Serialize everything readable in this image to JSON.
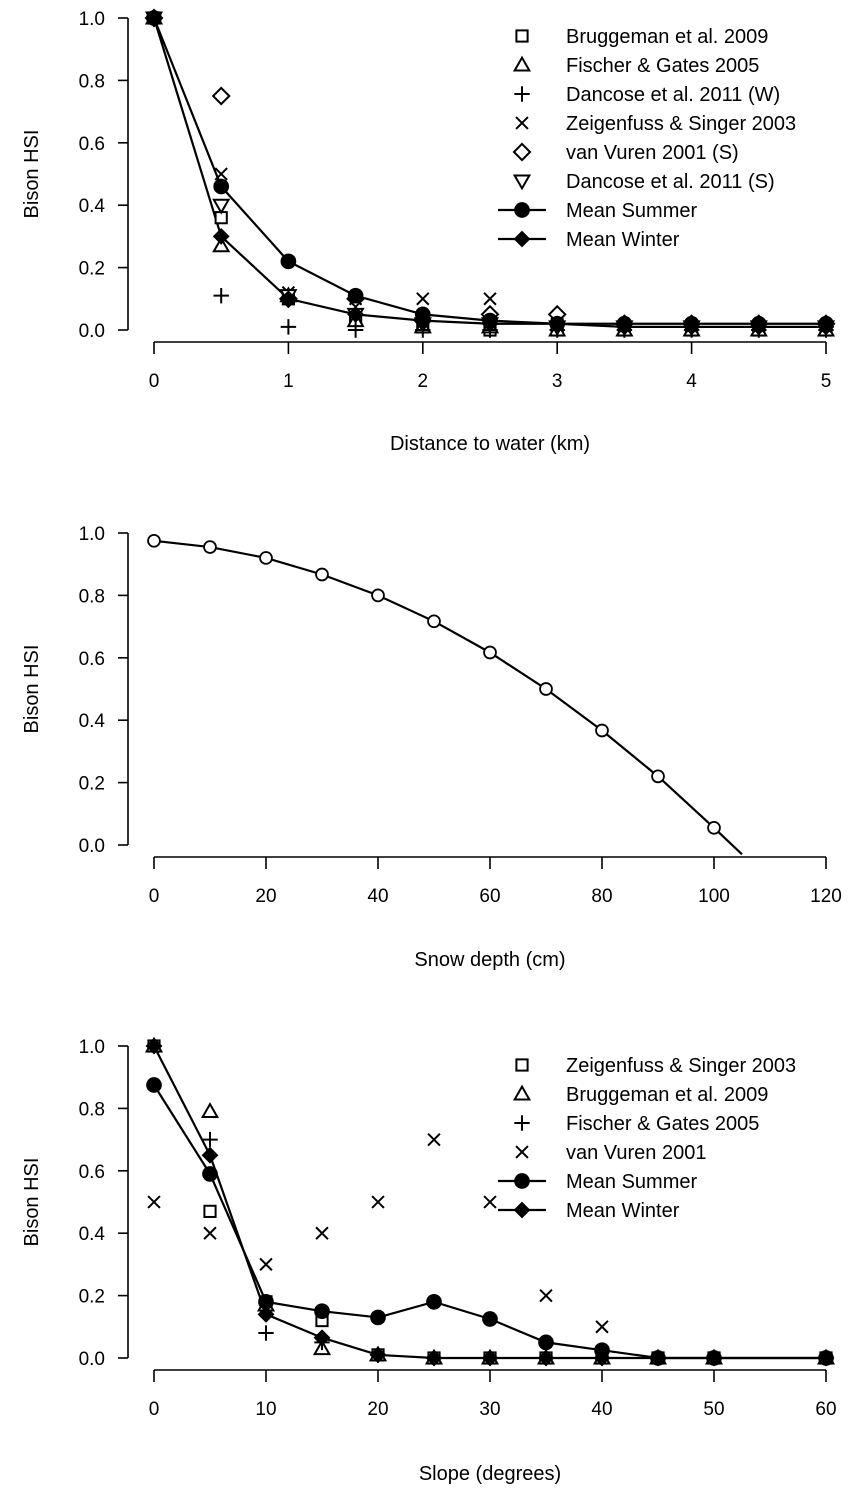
{
  "chart_data": [
    {
      "type": "scatter",
      "xlabel": "Distance to water (km)",
      "ylabel": "Bison HSI",
      "xlim": [
        0,
        5
      ],
      "ylim": [
        0,
        1
      ],
      "xticks": [
        "0",
        "1",
        "2",
        "3",
        "4",
        "5"
      ],
      "yticks": [
        "0.0",
        "0.2",
        "0.4",
        "0.6",
        "0.8",
        "1.0"
      ],
      "legend_position": "top-right",
      "series": [
        {
          "name": "Bruggeman et al. 2009",
          "marker": "square",
          "line": false,
          "x": [
            0,
            0.5,
            1,
            1.5,
            2,
            2.5,
            3,
            3.5,
            4,
            4.5,
            5
          ],
          "y": [
            1.0,
            0.36,
            0.1,
            0.04,
            0.01,
            0.0,
            0.0,
            0.0,
            0.0,
            0.0,
            0.0
          ]
        },
        {
          "name": "Fischer & Gates 2005",
          "marker": "triangle",
          "line": false,
          "x": [
            0,
            0.5,
            1,
            1.5,
            2,
            2.5,
            3,
            3.5,
            4,
            4.5,
            5
          ],
          "y": [
            1.0,
            0.27,
            0.11,
            0.03,
            0.01,
            0.01,
            0.0,
            0.0,
            0.0,
            0.0,
            0.0
          ]
        },
        {
          "name": "Dancose et al. 2011 (W)",
          "marker": "plus",
          "line": false,
          "x": [
            0,
            0.5,
            1,
            1.5,
            2,
            2.5,
            3,
            3.5,
            4,
            4.5,
            5
          ],
          "y": [
            1.0,
            0.11,
            0.01,
            0.0,
            0.0,
            0.0,
            0.0,
            0.0,
            0.0,
            0.0,
            0.0
          ]
        },
        {
          "name": "Zeigenfuss & Singer 2003",
          "marker": "x",
          "line": false,
          "x": [
            0,
            0.5,
            1,
            1.5,
            2,
            2.5,
            3,
            3.5,
            4,
            4.5,
            5
          ],
          "y": [
            1.0,
            0.5,
            0.12,
            0.1,
            0.1,
            0.1,
            0.02,
            0.01,
            0.01,
            0.01,
            0.01
          ]
        },
        {
          "name": "van Vuren 2001 (S)",
          "marker": "diamond-open",
          "line": false,
          "x": [
            0,
            0.5,
            1,
            1.5,
            2,
            2.5,
            3,
            3.5,
            4,
            4.5,
            5
          ],
          "y": [
            1.0,
            0.75,
            0.1,
            0.1,
            0.03,
            0.05,
            0.05,
            0.02,
            0.02,
            0.02,
            0.02
          ]
        },
        {
          "name": "Dancose et al. 2011 (S)",
          "marker": "triangle-down",
          "line": false,
          "x": [
            0,
            0.5,
            1,
            1.5,
            2,
            2.5,
            3,
            3.5,
            4,
            4.5,
            5
          ],
          "y": [
            1.0,
            0.4,
            0.11,
            0.05,
            0.02,
            0.02,
            0.01,
            0.01,
            0.01,
            0.01,
            0.01
          ]
        },
        {
          "name": "Mean Summer",
          "marker": "circle-filled",
          "line": true,
          "x": [
            0,
            0.5,
            1,
            1.5,
            2,
            2.5,
            3,
            3.5,
            4,
            4.5,
            5
          ],
          "y": [
            1.0,
            0.46,
            0.22,
            0.11,
            0.05,
            0.03,
            0.02,
            0.02,
            0.02,
            0.02,
            0.02
          ]
        },
        {
          "name": "Mean Winter",
          "marker": "diamond-filled",
          "line": true,
          "x": [
            0,
            0.5,
            1,
            1.5,
            2,
            2.5,
            3,
            3.5,
            4,
            4.5,
            5
          ],
          "y": [
            1.0,
            0.3,
            0.1,
            0.05,
            0.03,
            0.02,
            0.02,
            0.01,
            0.01,
            0.01,
            0.01
          ]
        }
      ]
    },
    {
      "type": "line",
      "xlabel": "Snow depth (cm)",
      "ylabel": "Bison HSI",
      "xlim": [
        0,
        120
      ],
      "ylim": [
        0,
        1
      ],
      "xticks": [
        "0",
        "20",
        "40",
        "60",
        "80",
        "100",
        "120"
      ],
      "yticks": [
        "0.0",
        "0.2",
        "0.4",
        "0.6",
        "0.8",
        "1.0"
      ],
      "series": [
        {
          "marker": "circle-open",
          "line": true,
          "x": [
            0,
            10,
            20,
            30,
            40,
            50,
            60,
            70,
            80,
            90,
            100,
            105
          ],
          "y": [
            0.975,
            0.955,
            0.92,
            0.867,
            0.8,
            0.717,
            0.617,
            0.5,
            0.367,
            0.22,
            0.055,
            -0.03
          ],
          "marked_points": 11
        }
      ]
    },
    {
      "type": "scatter",
      "xlabel": "Slope (degrees)",
      "ylabel": "Bison HSI",
      "xlim": [
        0,
        60
      ],
      "ylim": [
        0,
        1
      ],
      "xticks": [
        "0",
        "10",
        "20",
        "30",
        "40",
        "50",
        "60"
      ],
      "yticks": [
        "0.0",
        "0.2",
        "0.4",
        "0.6",
        "0.8",
        "1.0"
      ],
      "legend_position": "top-right",
      "series": [
        {
          "name": "Zeigenfuss & Singer 2003",
          "marker": "square",
          "line": false,
          "x": [
            0,
            5,
            10,
            15,
            20,
            25,
            30,
            35,
            40,
            45,
            50,
            60
          ],
          "y": [
            1.0,
            0.47,
            0.18,
            0.12,
            0.01,
            0.0,
            0.0,
            0.0,
            0.0,
            0.0,
            0.0,
            0.0
          ]
        },
        {
          "name": "Bruggeman et al. 2009",
          "marker": "triangle",
          "line": false,
          "x": [
            0,
            5,
            10,
            15,
            20,
            25,
            30,
            35,
            40,
            45,
            50,
            60
          ],
          "y": [
            1.0,
            0.79,
            0.17,
            0.03,
            0.01,
            0.0,
            0.0,
            0.0,
            0.0,
            0.0,
            0.0,
            0.0
          ]
        },
        {
          "name": "Fischer & Gates 2005",
          "marker": "plus",
          "line": false,
          "x": [
            0,
            5,
            10,
            15,
            20,
            25,
            30,
            35,
            40,
            45,
            50,
            60
          ],
          "y": [
            1.0,
            0.7,
            0.08,
            0.05,
            0.01,
            0.0,
            0.0,
            0.0,
            0.0,
            0.0,
            0.0,
            0.0
          ]
        },
        {
          "name": "van Vuren 2001",
          "marker": "x",
          "line": false,
          "x": [
            0,
            5,
            10,
            15,
            20,
            25,
            30,
            35,
            40,
            45,
            50,
            60
          ],
          "y": [
            0.5,
            0.4,
            0.3,
            0.4,
            0.5,
            0.7,
            0.5,
            0.2,
            0.1,
            0.0,
            0.0,
            0.0
          ]
        },
        {
          "name": "Mean Summer",
          "marker": "circle-filled",
          "line": true,
          "x": [
            0,
            5,
            10,
            15,
            20,
            25,
            30,
            35,
            40,
            45,
            50,
            60
          ],
          "y": [
            0.875,
            0.59,
            0.18,
            0.15,
            0.13,
            0.18,
            0.125,
            0.05,
            0.025,
            0.0,
            0.0,
            0.0
          ]
        },
        {
          "name": "Mean Winter",
          "marker": "diamond-filled",
          "line": true,
          "x": [
            0,
            5,
            10,
            15,
            20,
            25,
            30,
            35,
            40,
            45,
            50,
            60
          ],
          "y": [
            1.0,
            0.65,
            0.14,
            0.065,
            0.01,
            0.0,
            0.0,
            0.0,
            0.0,
            0.0,
            0.0,
            0.0
          ]
        }
      ]
    }
  ]
}
